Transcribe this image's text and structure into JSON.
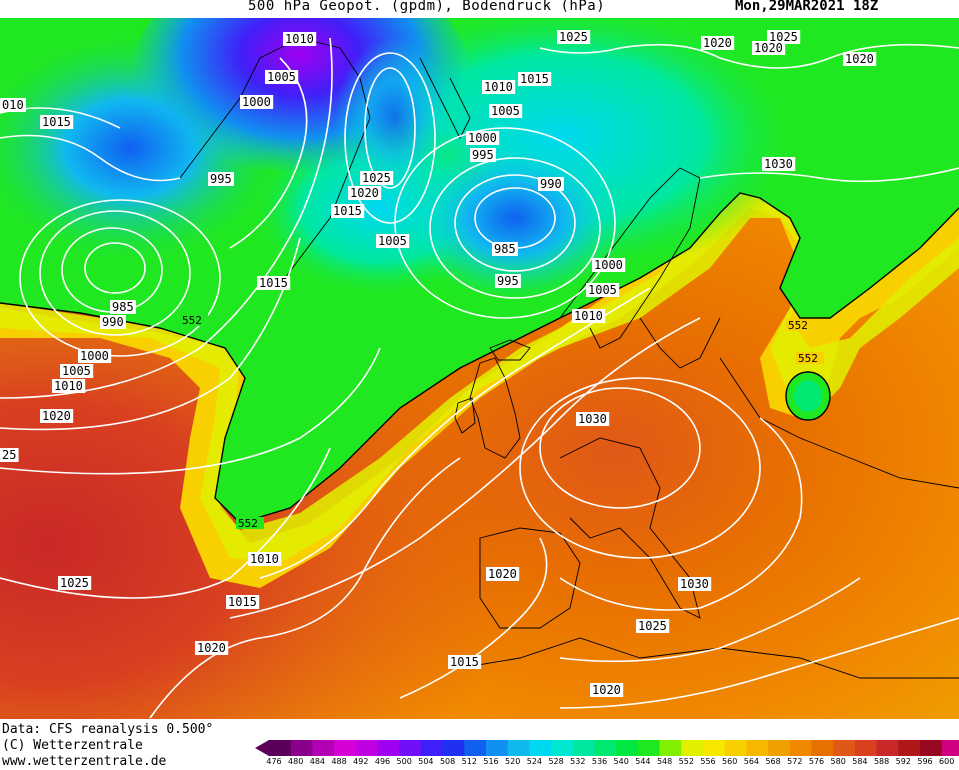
{
  "header": {
    "title": "500 hPa Geopot. (gpdm), Bodendruck (hPa)",
    "datetime": "Mon,29MAR2021 18Z"
  },
  "credits": {
    "data_source": "Data: CFS reanalysis 0.500°",
    "copyright": "(C) Wetterzentrale",
    "website": "www.wetterzentrale.de"
  },
  "legend": {
    "levels": [
      476,
      480,
      484,
      488,
      492,
      496,
      500,
      504,
      508,
      512,
      516,
      520,
      524,
      528,
      532,
      536,
      540,
      544,
      548,
      552,
      556,
      560,
      564,
      568,
      572,
      576,
      580,
      584,
      588,
      592,
      596,
      600
    ],
    "colors": [
      "#5a005a",
      "#8a008a",
      "#b400b4",
      "#d600d6",
      "#c000e0",
      "#a000f0",
      "#7010f8",
      "#4020f8",
      "#2030f0",
      "#1060f0",
      "#1090f0",
      "#10b8f0",
      "#00d8f0",
      "#00e8d0",
      "#00e8a0",
      "#00e870",
      "#00e840",
      "#20e820",
      "#80f000",
      "#e0f000",
      "#f8e800",
      "#f8d000",
      "#f8b800",
      "#f0a000",
      "#f08800",
      "#e87000",
      "#e05818",
      "#d84020",
      "#c82828",
      "#b01818",
      "#980820",
      "#d00080"
    ],
    "unit": "gpdm"
  },
  "map": {
    "geopotential_label_552": "552",
    "isobar_labels": [
      {
        "text": "1010"
      },
      {
        "text": "1005"
      },
      {
        "text": "1000"
      },
      {
        "text": "1025"
      },
      {
        "text": "1020"
      },
      {
        "text": "1025"
      },
      {
        "text": "1020"
      },
      {
        "text": "1010"
      },
      {
        "text": "1015"
      },
      {
        "text": "1005"
      },
      {
        "text": "1000"
      },
      {
        "text": "995"
      },
      {
        "text": "990"
      },
      {
        "text": "985"
      },
      {
        "text": "995"
      },
      {
        "text": "1000"
      },
      {
        "text": "1005"
      },
      {
        "text": "1010"
      },
      {
        "text": "1015"
      },
      {
        "text": "995"
      },
      {
        "text": "1025"
      },
      {
        "text": "1020"
      },
      {
        "text": "1015"
      },
      {
        "text": "1005"
      },
      {
        "text": "985"
      },
      {
        "text": "990"
      },
      {
        "text": "1000"
      },
      {
        "text": "1005"
      },
      {
        "text": "1010"
      },
      {
        "text": "1020"
      },
      {
        "text": "1015"
      },
      {
        "text": "1030"
      },
      {
        "text": "1030"
      },
      {
        "text": "1010"
      },
      {
        "text": "1015"
      },
      {
        "text": "1020"
      },
      {
        "text": "1025"
      },
      {
        "text": "1020"
      },
      {
        "text": "1030"
      },
      {
        "text": "1025"
      },
      {
        "text": "1015"
      },
      {
        "text": "1020"
      },
      {
        "text": "1020"
      },
      {
        "text": "25"
      },
      {
        "text": "010"
      }
    ]
  }
}
